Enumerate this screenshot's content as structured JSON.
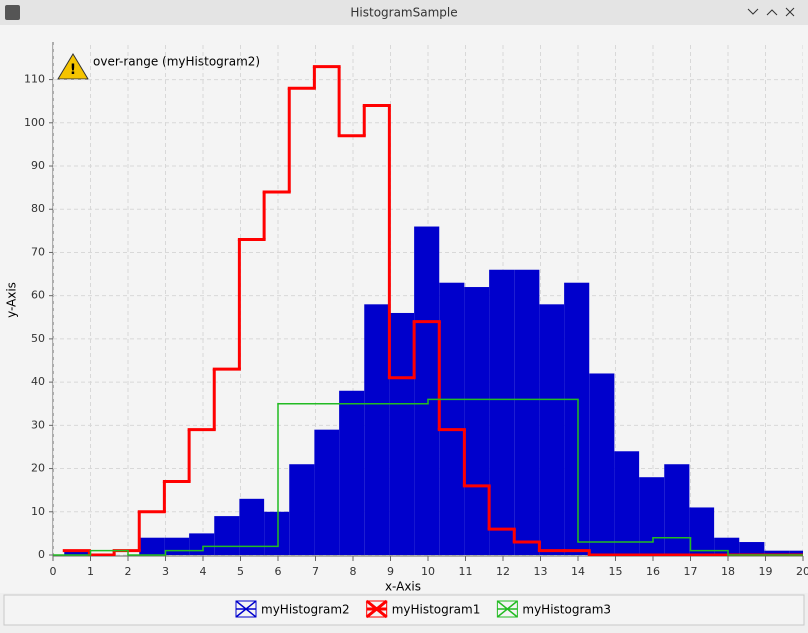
{
  "window": {
    "title": "HistogramSample"
  },
  "chart_data": {
    "type": "histogram",
    "annotation": "over-range (myHistogram2)",
    "xlabel": "x-Axis",
    "ylabel": "y-Axis",
    "xlim": [
      0,
      20
    ],
    "ylim": [
      0,
      118
    ],
    "xticks": [
      0,
      1,
      2,
      3,
      4,
      5,
      6,
      7,
      8,
      9,
      10,
      11,
      12,
      13,
      14,
      15,
      16,
      17,
      18,
      19,
      20
    ],
    "yticks": [
      0,
      10,
      20,
      30,
      40,
      50,
      60,
      70,
      80,
      90,
      100,
      110
    ],
    "grid": true,
    "legend": "bottom",
    "series": [
      {
        "name": "myHistogram2",
        "color": "#0000cc",
        "style": "filled",
        "bins": [
          0.3,
          0.97,
          1.63,
          2.3,
          2.97,
          3.63,
          4.3,
          4.97,
          5.63,
          6.3,
          6.97,
          7.63,
          8.3,
          8.97,
          9.63,
          10.3,
          10.97,
          11.63,
          12.3,
          12.97,
          13.63,
          14.3,
          14.97,
          15.63,
          16.3,
          16.97,
          17.63,
          18.3,
          18.97,
          19.63,
          20.3
        ],
        "values": [
          1,
          0,
          0,
          4,
          4,
          5,
          9,
          13,
          10,
          21,
          29,
          38,
          58,
          56,
          76,
          63,
          62,
          66,
          66,
          58,
          63,
          42,
          24,
          18,
          21,
          11,
          4,
          3,
          1,
          1
        ]
      },
      {
        "name": "myHistogram1",
        "color": "#ff0000",
        "style": "step",
        "line_width": 3,
        "bins": [
          0.3,
          0.97,
          1.63,
          2.3,
          2.97,
          3.63,
          4.3,
          4.97,
          5.63,
          6.3,
          6.97,
          7.63,
          8.3,
          8.97,
          9.63,
          10.3,
          10.97,
          11.63,
          12.3,
          12.97,
          13.63,
          14.3,
          14.97,
          15.63,
          16.3,
          16.97,
          17.63,
          18.3,
          18.97,
          19.63,
          20.3
        ],
        "values": [
          1,
          0,
          1,
          10,
          17,
          29,
          43,
          73,
          84,
          108,
          113,
          97,
          104,
          41,
          54,
          29,
          16,
          6,
          3,
          1,
          1,
          0,
          0,
          0,
          0,
          0,
          0,
          0,
          0,
          0
        ]
      },
      {
        "name": "myHistogram3",
        "color": "#22bb22",
        "style": "step",
        "line_width": 1.5,
        "bins": [
          0,
          1,
          2,
          3,
          4,
          6,
          10,
          14,
          16,
          17,
          18,
          20
        ],
        "values": [
          0,
          1,
          0,
          1,
          2,
          35,
          36,
          3,
          4,
          1,
          0
        ]
      }
    ]
  }
}
